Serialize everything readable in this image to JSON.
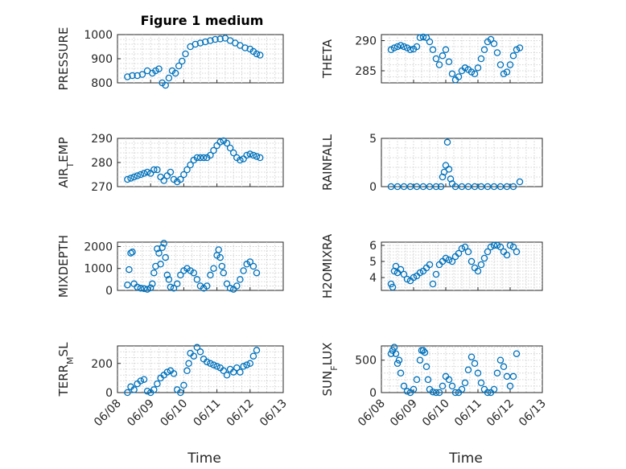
{
  "figure": {
    "title": "Figure 1 medium",
    "marker_color": "#0072bd"
  },
  "chart_data": [
    {
      "type": "scatter",
      "title": "Figure 1 medium",
      "ylabel": "PRESSURE",
      "xlabel": "",
      "ylim": [
        800,
        1000
      ],
      "yticks": [
        "800",
        "900",
        "1000"
      ],
      "xlim": [
        "06/08",
        "06/13"
      ],
      "xticks": [
        "06/08",
        "06/09",
        "06/10",
        "06/11",
        "06/12",
        "06/13"
      ],
      "grid": true,
      "series": [
        {
          "x": [
            8.3,
            8.45,
            8.6,
            8.75,
            8.9,
            9.05,
            9.15,
            9.25,
            9.35,
            9.45,
            9.55,
            9.65,
            9.75,
            9.85,
            9.95,
            10.05,
            10.2,
            10.35,
            10.5,
            10.65,
            10.8,
            10.95,
            11.1,
            11.25,
            11.4,
            11.55,
            11.7,
            11.85,
            12.0,
            12.1,
            12.2,
            12.3
          ],
          "y": [
            825,
            830,
            830,
            835,
            850,
            840,
            850,
            858,
            800,
            790,
            820,
            850,
            840,
            870,
            890,
            920,
            950,
            960,
            965,
            970,
            975,
            980,
            982,
            985,
            975,
            965,
            955,
            945,
            940,
            930,
            920,
            915
          ]
        }
      ]
    },
    {
      "type": "scatter",
      "title": "",
      "ylabel": "THETA",
      "xlabel": "",
      "ylim": [
        283,
        291
      ],
      "yticks": [
        "285",
        "290"
      ],
      "xlim": [
        "06/08",
        "06/13"
      ],
      "xticks": [
        "06/08",
        "06/09",
        "06/10",
        "06/11",
        "06/12",
        "06/13"
      ],
      "grid": true,
      "series": [
        {
          "x": [
            8.3,
            8.4,
            8.5,
            8.6,
            8.7,
            8.8,
            8.9,
            9.0,
            9.1,
            9.2,
            9.3,
            9.4,
            9.5,
            9.6,
            9.7,
            9.8,
            9.9,
            10.0,
            10.1,
            10.2,
            10.3,
            10.4,
            10.5,
            10.6,
            10.7,
            10.8,
            10.9,
            11.0,
            11.1,
            11.2,
            11.3,
            11.4,
            11.5,
            11.6,
            11.7,
            11.8,
            11.9,
            12.0,
            12.1,
            12.2,
            12.3
          ],
          "y": [
            288.5,
            288.8,
            289.0,
            289.2,
            289.0,
            288.8,
            288.5,
            288.6,
            289.0,
            290.5,
            290.6,
            290.5,
            289.8,
            288.5,
            287.0,
            286.0,
            287.5,
            288.5,
            286.5,
            284.5,
            283.5,
            284.0,
            285.0,
            285.5,
            285.2,
            284.8,
            284.5,
            285.5,
            287.0,
            288.5,
            289.8,
            290.2,
            289.5,
            288.0,
            286.0,
            284.5,
            284.8,
            286.0,
            287.5,
            288.5,
            288.8
          ]
        }
      ]
    },
    {
      "type": "scatter",
      "title": "",
      "ylabel": "AIR_TEMP",
      "xlabel": "",
      "ylim": [
        270,
        290
      ],
      "yticks": [
        "270",
        "280",
        "290"
      ],
      "xlim": [
        "06/08",
        "06/13"
      ],
      "xticks": [
        "06/08",
        "06/09",
        "06/10",
        "06/11",
        "06/12",
        "06/13"
      ],
      "grid": true,
      "series": [
        {
          "x": [
            8.3,
            8.4,
            8.5,
            8.6,
            8.7,
            8.8,
            8.9,
            9.0,
            9.1,
            9.2,
            9.3,
            9.4,
            9.5,
            9.6,
            9.7,
            9.8,
            9.9,
            10.0,
            10.1,
            10.2,
            10.3,
            10.4,
            10.5,
            10.6,
            10.7,
            10.8,
            10.9,
            11.0,
            11.1,
            11.2,
            11.3,
            11.4,
            11.5,
            11.6,
            11.7,
            11.8,
            11.9,
            12.0,
            12.1,
            12.2,
            12.3
          ],
          "y": [
            273.0,
            273.5,
            274.0,
            274.5,
            275.0,
            275.5,
            276.0,
            275.5,
            277.0,
            277.0,
            274.0,
            272.5,
            274.5,
            276.0,
            273.0,
            272.0,
            273.0,
            275.0,
            277.0,
            279.0,
            281.0,
            282.0,
            282.0,
            282.0,
            282.0,
            283.0,
            285.0,
            287.0,
            288.5,
            289.0,
            288.0,
            286.0,
            284.0,
            282.0,
            281.0,
            281.5,
            283.0,
            283.5,
            283.0,
            282.5,
            282.0
          ]
        }
      ]
    },
    {
      "type": "scatter",
      "title": "",
      "ylabel": "RAINFALL",
      "xlabel": "",
      "ylim": [
        0,
        5
      ],
      "yticks": [
        "0",
        "5"
      ],
      "xlim": [
        "06/08",
        "06/13"
      ],
      "xticks": [
        "06/08",
        "06/09",
        "06/10",
        "06/11",
        "06/12",
        "06/13"
      ],
      "grid": true,
      "series": [
        {
          "x": [
            8.3,
            8.5,
            8.7,
            8.9,
            9.1,
            9.3,
            9.5,
            9.7,
            9.85,
            9.9,
            9.95,
            10.0,
            10.05,
            10.1,
            10.15,
            10.2,
            10.3,
            10.5,
            10.7,
            10.9,
            11.1,
            11.3,
            11.5,
            11.7,
            11.9,
            12.1,
            12.3
          ],
          "y": [
            0,
            0,
            0,
            0,
            0,
            0,
            0,
            0,
            0,
            1.0,
            1.5,
            2.2,
            4.6,
            1.8,
            0.8,
            0.3,
            0,
            0,
            0,
            0,
            0,
            0,
            0,
            0,
            0,
            0,
            0.5
          ]
        }
      ]
    },
    {
      "type": "scatter",
      "title": "",
      "ylabel": "MIXDEPTH",
      "xlabel": "",
      "ylim": [
        0,
        2200
      ],
      "yticks": [
        "0",
        "1000",
        "2000"
      ],
      "xlim": [
        "06/08",
        "06/13"
      ],
      "xticks": [
        "06/08",
        "06/09",
        "06/10",
        "06/11",
        "06/12",
        "06/13"
      ],
      "grid": true,
      "series": [
        {
          "x": [
            8.3,
            8.35,
            8.4,
            8.45,
            8.5,
            8.6,
            8.7,
            8.8,
            8.9,
            9.0,
            9.05,
            9.1,
            9.15,
            9.2,
            9.25,
            9.3,
            9.35,
            9.4,
            9.45,
            9.5,
            9.55,
            9.6,
            9.7,
            9.8,
            9.9,
            10.0,
            10.1,
            10.2,
            10.3,
            10.4,
            10.5,
            10.6,
            10.7,
            10.8,
            10.9,
            11.0,
            11.05,
            11.1,
            11.15,
            11.2,
            11.3,
            11.4,
            11.5,
            11.6,
            11.7,
            11.8,
            11.9,
            12.0,
            12.1,
            12.2
          ],
          "y": [
            250,
            950,
            1700,
            1750,
            300,
            150,
            100,
            80,
            50,
            120,
            300,
            800,
            1100,
            1900,
            1700,
            1200,
            1950,
            2150,
            1500,
            700,
            500,
            150,
            100,
            300,
            700,
            900,
            1000,
            900,
            800,
            500,
            200,
            100,
            200,
            700,
            1000,
            1600,
            1850,
            1500,
            1100,
            800,
            300,
            100,
            50,
            200,
            500,
            900,
            1200,
            1300,
            1100,
            800
          ]
        }
      ]
    },
    {
      "type": "scatter",
      "title": "",
      "ylabel": "H2OMIXRA",
      "xlabel": "",
      "ylim": [
        3.2,
        6.2
      ],
      "yticks": [
        "4",
        "5",
        "6"
      ],
      "xlim": [
        "06/08",
        "06/13"
      ],
      "xticks": [
        "06/08",
        "06/09",
        "06/10",
        "06/11",
        "06/12",
        "06/13"
      ],
      "grid": true,
      "series": [
        {
          "x": [
            8.3,
            8.35,
            8.4,
            8.45,
            8.5,
            8.6,
            8.7,
            8.8,
            8.9,
            9.0,
            9.1,
            9.2,
            9.3,
            9.4,
            9.5,
            9.6,
            9.7,
            9.8,
            9.9,
            10.0,
            10.1,
            10.2,
            10.3,
            10.4,
            10.5,
            10.6,
            10.7,
            10.8,
            10.9,
            11.0,
            11.1,
            11.2,
            11.3,
            11.4,
            11.5,
            11.6,
            11.7,
            11.8,
            11.9,
            12.0,
            12.1,
            12.2
          ],
          "y": [
            3.6,
            3.4,
            4.4,
            4.7,
            4.3,
            4.5,
            4.2,
            3.9,
            3.8,
            4.0,
            4.1,
            4.3,
            4.4,
            4.6,
            4.8,
            3.6,
            4.2,
            4.8,
            5.0,
            5.2,
            5.1,
            5.0,
            5.3,
            5.5,
            5.8,
            5.9,
            5.6,
            5.0,
            4.6,
            4.4,
            4.8,
            5.2,
            5.6,
            5.9,
            6.0,
            6.0,
            5.9,
            5.6,
            5.4,
            6.0,
            5.9,
            5.6
          ]
        }
      ]
    },
    {
      "type": "scatter",
      "title": "",
      "ylabel": "TERR_MSL",
      "xlabel": "Time",
      "ylim": [
        0,
        320
      ],
      "yticks": [
        "0",
        "200"
      ],
      "xlim": [
        "06/08",
        "06/13"
      ],
      "xticks": [
        "06/08",
        "06/09",
        "06/10",
        "06/11",
        "06/12",
        "06/13"
      ],
      "grid": true,
      "series": [
        {
          "x": [
            8.3,
            8.4,
            8.5,
            8.6,
            8.7,
            8.8,
            8.9,
            9.0,
            9.1,
            9.2,
            9.3,
            9.4,
            9.5,
            9.6,
            9.7,
            9.8,
            9.9,
            10.0,
            10.1,
            10.15,
            10.2,
            10.3,
            10.4,
            10.5,
            10.6,
            10.7,
            10.8,
            10.9,
            11.0,
            11.1,
            11.2,
            11.3,
            11.4,
            11.5,
            11.6,
            11.7,
            11.8,
            11.9,
            12.0,
            12.1,
            12.2
          ],
          "y": [
            0,
            40,
            20,
            60,
            80,
            90,
            10,
            0,
            20,
            60,
            100,
            120,
            140,
            150,
            130,
            20,
            0,
            50,
            150,
            200,
            270,
            250,
            310,
            280,
            230,
            210,
            200,
            190,
            180,
            170,
            150,
            120,
            160,
            140,
            170,
            140,
            180,
            190,
            200,
            250,
            290
          ]
        }
      ]
    },
    {
      "type": "scatter",
      "title": "",
      "ylabel": "SUN_FLUX",
      "xlabel": "Time",
      "ylim": [
        0,
        720
      ],
      "yticks": [
        "0",
        "500"
      ],
      "xlim": [
        "06/08",
        "06/13"
      ],
      "xticks": [
        "06/08",
        "06/09",
        "06/10",
        "06/11",
        "06/12",
        "06/13"
      ],
      "grid": true,
      "series": [
        {
          "x": [
            8.3,
            8.35,
            8.4,
            8.45,
            8.5,
            8.55,
            8.6,
            8.7,
            8.8,
            8.9,
            9.0,
            9.1,
            9.2,
            9.25,
            9.3,
            9.35,
            9.4,
            9.45,
            9.5,
            9.6,
            9.7,
            9.8,
            9.9,
            10.0,
            10.1,
            10.2,
            10.3,
            10.4,
            10.5,
            10.6,
            10.7,
            10.8,
            10.9,
            11.0,
            11.1,
            11.2,
            11.3,
            11.4,
            11.5,
            11.6,
            11.7,
            11.8,
            11.9,
            12.0,
            12.1,
            12.2
          ],
          "y": [
            600,
            650,
            700,
            600,
            450,
            500,
            300,
            100,
            20,
            0,
            50,
            200,
            500,
            650,
            650,
            620,
            400,
            200,
            50,
            10,
            0,
            0,
            100,
            250,
            200,
            100,
            0,
            0,
            50,
            150,
            350,
            550,
            450,
            300,
            150,
            50,
            0,
            0,
            50,
            300,
            500,
            400,
            250,
            100,
            250,
            600
          ]
        }
      ]
    }
  ]
}
